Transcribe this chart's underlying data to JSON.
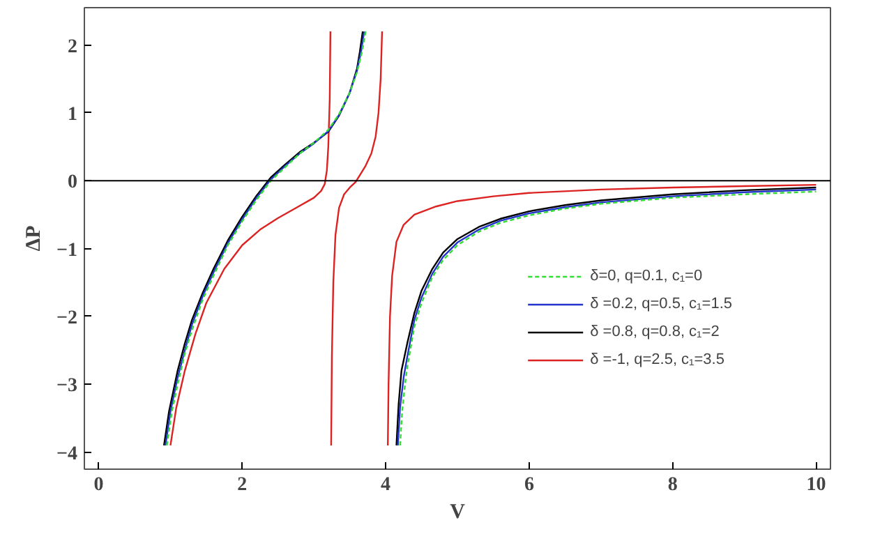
{
  "chart_data": {
    "type": "line",
    "xlabel": "V",
    "ylabel": "ΔP",
    "xlim": [
      -0.2,
      10.2
    ],
    "ylim": [
      -4.25,
      2.55
    ],
    "xticks": [
      0,
      2,
      4,
      6,
      8,
      10
    ],
    "yticks": [
      -4,
      -3,
      -2,
      -1,
      0,
      1,
      2
    ],
    "grid": false,
    "legend": "right",
    "marker": "none",
    "ref_lines": [
      {
        "axis": "y",
        "value": 0,
        "color": "#000000"
      }
    ],
    "series": [
      {
        "name": "δ=0, q=0.1, c₁=0",
        "color": "#33dd33",
        "line_style": "dashed",
        "x": [
          0.95,
          1.02,
          1.1,
          1.2,
          1.3,
          1.45,
          1.6,
          1.8,
          2.0,
          2.2,
          2.4,
          2.6,
          2.8,
          3.0,
          3.2,
          3.35,
          3.5,
          3.6,
          3.67,
          3.72,
          null,
          4.2,
          4.23,
          4.27,
          4.3,
          4.4,
          4.5,
          4.65,
          4.8,
          5.0,
          5.3,
          5.6,
          6,
          6.5,
          7,
          8,
          9,
          10
        ],
        "values": [
          -3.9,
          -3.4,
          -3.0,
          -2.55,
          -2.2,
          -1.75,
          -1.4,
          -0.95,
          -0.6,
          -0.28,
          0,
          0.2,
          0.4,
          0.56,
          0.75,
          0.98,
          1.3,
          1.6,
          1.9,
          2.2,
          null,
          -3.9,
          -3.4,
          -3.0,
          -2.75,
          -2.15,
          -1.8,
          -1.42,
          -1.17,
          -0.95,
          -0.75,
          -0.62,
          -0.51,
          -0.41,
          -0.34,
          -0.25,
          -0.2,
          -0.16
        ]
      },
      {
        "name": "δ =0.2, q=0.5, c₁=1.5",
        "color": "#2233cc",
        "line_style": "solid",
        "x": [
          0.93,
          1.0,
          1.1,
          1.2,
          1.3,
          1.45,
          1.6,
          1.8,
          2.0,
          2.2,
          2.4,
          2.6,
          2.8,
          3.0,
          3.2,
          3.35,
          3.5,
          3.6,
          3.66,
          3.7,
          null,
          4.17,
          4.2,
          4.25,
          4.3,
          4.4,
          4.5,
          4.65,
          4.8,
          5.0,
          5.3,
          5.6,
          6,
          6.5,
          7,
          8,
          9,
          10
        ],
        "values": [
          -3.9,
          -3.4,
          -2.9,
          -2.5,
          -2.12,
          -1.7,
          -1.35,
          -0.92,
          -0.57,
          -0.25,
          0.02,
          0.22,
          0.4,
          0.55,
          0.73,
          0.97,
          1.3,
          1.62,
          1.92,
          2.2,
          null,
          -3.9,
          -3.35,
          -2.9,
          -2.6,
          -2.05,
          -1.72,
          -1.37,
          -1.12,
          -0.91,
          -0.72,
          -0.59,
          -0.48,
          -0.39,
          -0.32,
          -0.23,
          -0.17,
          -0.13
        ]
      },
      {
        "name": "δ =0.8, q=0.8, c₁=2",
        "color": "#000000",
        "line_style": "solid",
        "x": [
          0.91,
          0.98,
          1.1,
          1.2,
          1.3,
          1.45,
          1.6,
          1.8,
          2.0,
          2.2,
          2.4,
          2.6,
          2.8,
          3.0,
          3.2,
          3.35,
          3.5,
          3.6,
          3.64,
          3.68,
          null,
          4.15,
          4.18,
          4.22,
          4.3,
          4.4,
          4.5,
          4.65,
          4.8,
          5.0,
          5.3,
          5.6,
          6,
          6.5,
          7,
          8,
          9,
          10
        ],
        "values": [
          -3.9,
          -3.4,
          -2.8,
          -2.4,
          -2.05,
          -1.65,
          -1.3,
          -0.88,
          -0.53,
          -0.22,
          0.05,
          0.24,
          0.42,
          0.56,
          0.72,
          0.96,
          1.3,
          1.65,
          1.9,
          2.2,
          null,
          -3.9,
          -3.3,
          -2.8,
          -2.4,
          -1.95,
          -1.62,
          -1.3,
          -1.06,
          -0.86,
          -0.68,
          -0.56,
          -0.45,
          -0.36,
          -0.29,
          -0.2,
          -0.14,
          -0.1
        ]
      },
      {
        "name": "δ =-1, q=2.5, c₁=3.5",
        "color": "#dd2222",
        "line_style": "solid",
        "x": [
          1.0,
          1.08,
          1.2,
          1.35,
          1.5,
          1.75,
          2.0,
          2.25,
          2.5,
          2.75,
          3.0,
          3.1,
          3.15,
          3.18,
          3.2,
          3.22,
          3.23,
          null,
          3.24,
          3.25,
          3.27,
          3.3,
          3.35,
          3.42,
          3.5,
          3.58,
          3.65,
          3.72,
          3.8,
          3.86,
          3.9,
          3.93,
          3.95,
          null,
          4.03,
          4.04,
          4.06,
          4.09,
          4.15,
          4.25,
          4.4,
          4.7,
          5,
          5.5,
          6,
          7,
          8,
          9,
          10
        ],
        "values": [
          -3.9,
          -3.35,
          -2.8,
          -2.25,
          -1.8,
          -1.3,
          -0.95,
          -0.72,
          -0.55,
          -0.4,
          -0.25,
          -0.15,
          -0.05,
          0.15,
          0.5,
          1.2,
          2.2,
          null,
          -3.9,
          -2.6,
          -1.5,
          -0.8,
          -0.4,
          -0.2,
          -0.1,
          -0.02,
          0.1,
          0.22,
          0.4,
          0.65,
          1.0,
          1.5,
          2.2,
          null,
          -3.9,
          -3.0,
          -2.0,
          -1.4,
          -0.9,
          -0.65,
          -0.5,
          -0.38,
          -0.3,
          -0.23,
          -0.18,
          -0.13,
          -0.1,
          -0.08,
          -0.06
        ]
      }
    ]
  }
}
